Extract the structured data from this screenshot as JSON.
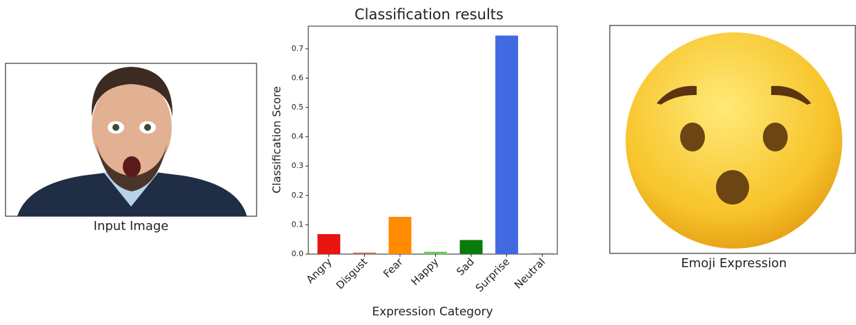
{
  "input_caption": "Input Image",
  "emoji_caption": "Emoji Expression",
  "chart_data": {
    "type": "bar",
    "title": "Classification results",
    "x_label": "Expression Category",
    "y_label": "Classification Score",
    "categories": [
      "Angry",
      "Disgust",
      "Fear",
      "Happy",
      "Sad",
      "Surprise",
      "Neutral"
    ],
    "values": [
      0.068,
      0.005,
      0.127,
      0.008,
      0.048,
      0.745,
      0.003
    ],
    "colors": [
      "#e8140f",
      "#c0705a",
      "#ff8c00",
      "#66cc55",
      "#0a7a0a",
      "#4169e1",
      "#8a8a7a"
    ],
    "ylim": [
      0,
      0.777
    ],
    "yticks": [
      {
        "value": 0,
        "label": "0.0"
      },
      0.1,
      0.2,
      0.3,
      0.4,
      0.5,
      0.6,
      0.7
    ]
  }
}
